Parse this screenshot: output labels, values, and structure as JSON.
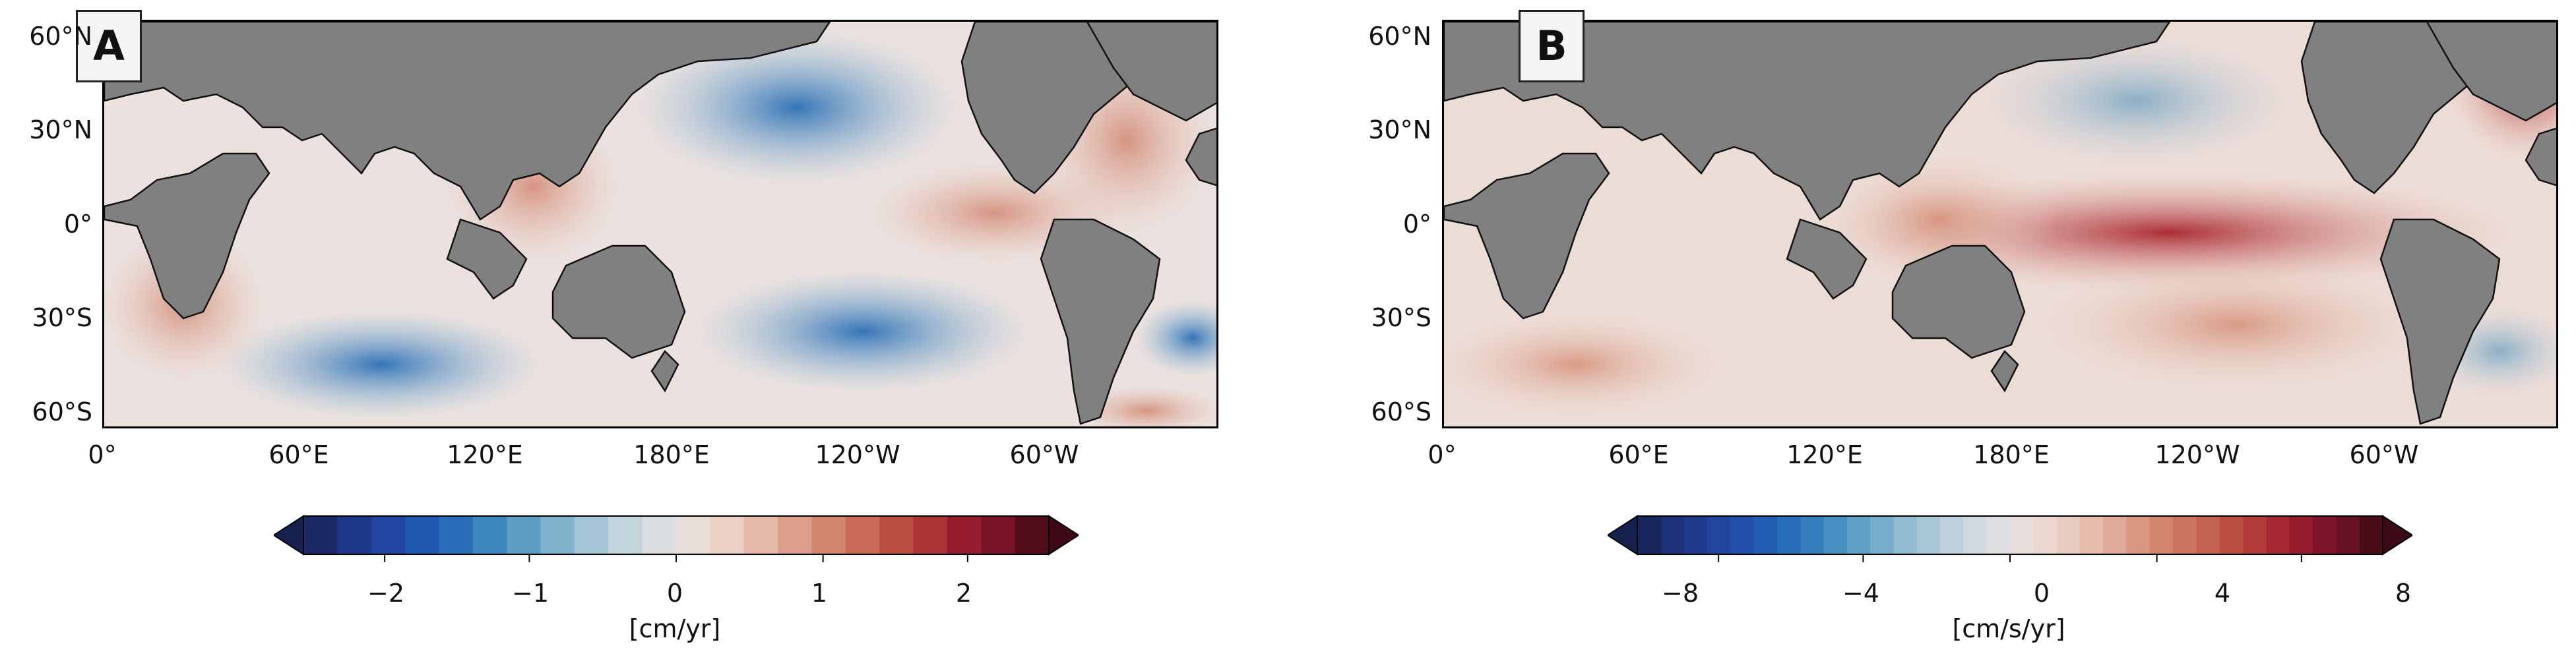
{
  "panels": [
    {
      "letter": "A",
      "lat_labels": [
        "60°N",
        "30°N",
        "0°",
        "30°S",
        "60°S"
      ],
      "lon_labels": [
        "0°",
        "60°E",
        "120°E",
        "180°E",
        "120°W",
        "60°W"
      ],
      "colorbar": {
        "ticks": [
          "−2",
          "−1",
          "0",
          "1",
          "2"
        ],
        "range": [
          -2.5,
          2.5
        ],
        "unit_label": "[cm/yr]"
      }
    },
    {
      "letter": "B",
      "lat_labels": [
        "60°N",
        "30°N",
        "0°",
        "30°S",
        "60°S"
      ],
      "lon_labels": [
        "0°",
        "60°E",
        "120°E",
        "180°E",
        "120°W",
        "60°W"
      ],
      "colorbar": {
        "ticks": [
          "−8",
          "−4",
          "0",
          "4",
          "8"
        ],
        "range": [
          -8,
          8
        ],
        "unit_label": "[cm/s/yr]"
      }
    }
  ],
  "colors": {
    "land": "#808080",
    "negative_strong": "#1b2a6b",
    "negative": "#2a73b8",
    "neutral": "#ebe4e2",
    "positive": "#cf6a55",
    "positive_strong": "#3d0a16"
  }
}
